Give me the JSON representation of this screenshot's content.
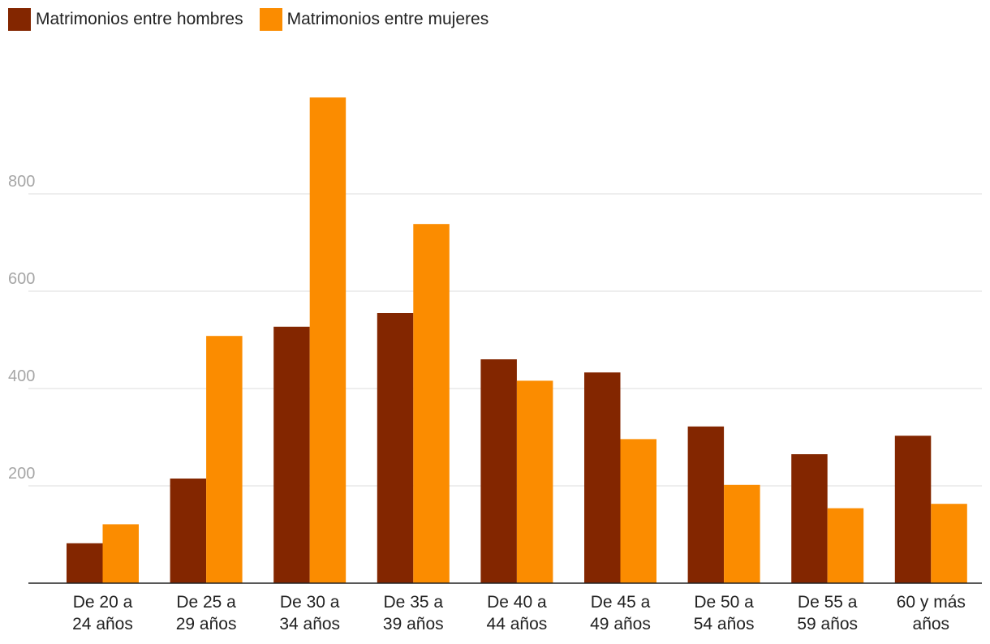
{
  "chart_data": {
    "type": "bar",
    "title": "",
    "xlabel": "",
    "ylabel": "",
    "ylim": [
      0,
      1000
    ],
    "yticks": [
      200,
      400,
      600,
      800
    ],
    "grid": true,
    "legend_position": "top-left",
    "categories": [
      [
        "De 20 a",
        "24 años"
      ],
      [
        "De 25 a",
        "29 años"
      ],
      [
        "De 30 a",
        "34 años"
      ],
      [
        "De 35 a",
        "39 años"
      ],
      [
        "De 40 a",
        "44 años"
      ],
      [
        "De 45 a",
        "49 años"
      ],
      [
        "De 50 a",
        "54 años"
      ],
      [
        "De 55 a",
        "59 años"
      ],
      [
        "60 y más",
        "años"
      ]
    ],
    "series": [
      {
        "name": "Matrimonios entre hombres",
        "color": "#832600",
        "values": [
          82,
          215,
          527,
          555,
          460,
          433,
          322,
          265,
          303
        ]
      },
      {
        "name": "Matrimonios entre mujeres",
        "color": "#fb8c00",
        "values": [
          121,
          508,
          998,
          738,
          416,
          296,
          202,
          154,
          163
        ]
      }
    ]
  }
}
